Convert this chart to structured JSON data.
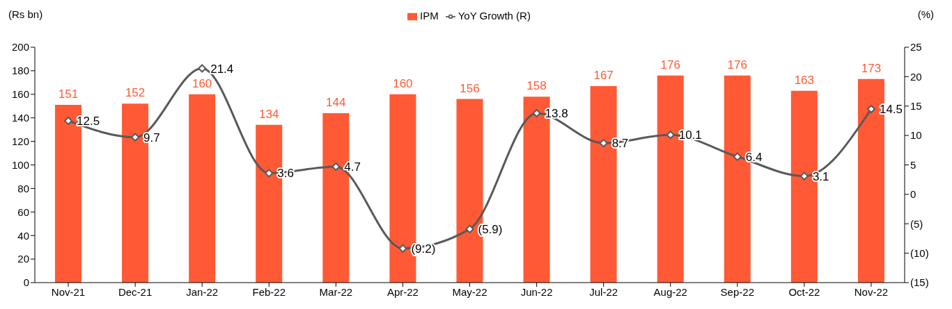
{
  "chart_data": {
    "type": "bar",
    "ylabel": "(Rs bn)",
    "y2label": "(%)",
    "legend": "top",
    "marker": "diamond",
    "categories": [
      "Nov-21",
      "Dec-21",
      "Jan-22",
      "Feb-22",
      "Mar-22",
      "Apr-22",
      "May-22",
      "Jun-22",
      "Jul-22",
      "Aug-22",
      "Sep-22",
      "Oct-22",
      "Nov-22"
    ],
    "series": [
      {
        "name": "IPM",
        "color": "#ff5a35",
        "values": [
          151,
          152,
          160,
          134,
          144,
          160,
          156,
          158,
          167,
          176,
          176,
          163,
          173
        ],
        "value_labels": [
          "151",
          "152",
          "160",
          "134",
          "144",
          "160",
          "156",
          "158",
          "167",
          "176",
          "176",
          "163",
          "173"
        ]
      },
      {
        "name": "YoY Growth (R)",
        "type": "line",
        "axis": "y2",
        "color": "#595959",
        "values": [
          12.5,
          9.7,
          21.4,
          3.6,
          4.7,
          -9.2,
          -5.9,
          13.8,
          8.7,
          10.1,
          6.4,
          3.1,
          14.5
        ],
        "value_labels": [
          "12.5",
          "9.7",
          "21.4",
          "3.6",
          "4.7",
          "(9.2)",
          "(5.9)",
          "13.8",
          "8.7",
          "10.1",
          "6.4",
          "3.1",
          "14.5"
        ]
      }
    ],
    "ylim": [
      0,
      200
    ],
    "yticks": [
      0,
      20,
      40,
      60,
      80,
      100,
      120,
      140,
      160,
      180,
      200
    ],
    "y2lim": [
      -15,
      25
    ],
    "y2ticks": [
      {
        "value": -15,
        "label": "(15)"
      },
      {
        "value": -10,
        "label": "(10)"
      },
      {
        "value": -5,
        "label": "(5)"
      },
      0,
      5,
      10,
      15,
      20,
      25
    ]
  }
}
